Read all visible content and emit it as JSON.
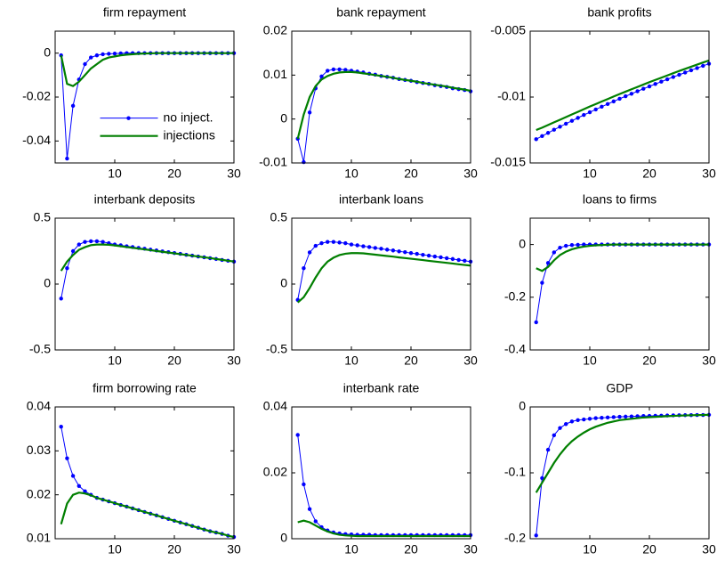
{
  "chart_data": [
    {
      "type": "line",
      "title": "firm repayment",
      "legend": "center",
      "x": [
        1,
        2,
        3,
        4,
        5,
        6,
        7,
        8,
        9,
        10,
        11,
        12,
        13,
        14,
        15,
        16,
        17,
        18,
        19,
        20,
        21,
        22,
        23,
        24,
        25,
        26,
        27,
        28,
        29,
        30
      ],
      "series": [
        {
          "name": "no inject.",
          "color": "#0000ff",
          "marker": true,
          "values": [
            -0.001,
            -0.048,
            -0.024,
            -0.012,
            -0.005,
            -0.002,
            -0.001,
            -0.0005,
            -0.0003,
            -0.0002,
            -0.0001,
            0,
            0,
            0,
            0,
            0,
            0,
            0,
            0,
            0,
            0,
            0,
            0,
            0,
            0,
            0,
            0,
            0,
            0,
            0
          ]
        },
        {
          "name": "injections",
          "color": "#007f00",
          "marker": false,
          "values": [
            -0.001,
            -0.014,
            -0.015,
            -0.013,
            -0.01,
            -0.007,
            -0.005,
            -0.003,
            -0.002,
            -0.0015,
            -0.001,
            -0.0007,
            -0.0005,
            -0.0003,
            -0.0002,
            -0.0001,
            0,
            0,
            0,
            0,
            0,
            0,
            0,
            0,
            0,
            0,
            0,
            0,
            0,
            0
          ]
        }
      ],
      "xlim": [
        0,
        30
      ],
      "xticks": [
        10,
        20,
        30
      ],
      "ylim": [
        -0.05,
        0.01
      ],
      "yticks": [
        -0.04,
        -0.02,
        0
      ]
    },
    {
      "type": "line",
      "title": "bank repayment",
      "x": [
        1,
        2,
        3,
        4,
        5,
        6,
        7,
        8,
        9,
        10,
        11,
        12,
        13,
        14,
        15,
        16,
        17,
        18,
        19,
        20,
        21,
        22,
        23,
        24,
        25,
        26,
        27,
        28,
        29,
        30
      ],
      "series": [
        {
          "color": "#0000ff",
          "marker": true,
          "values": [
            -0.0045,
            -0.0098,
            0.0015,
            0.007,
            0.0097,
            0.011,
            0.0113,
            0.0113,
            0.0112,
            0.011,
            0.0108,
            0.0106,
            0.0103,
            0.0101,
            0.0098,
            0.0096,
            0.0094,
            0.0091,
            0.0089,
            0.0087,
            0.0084,
            0.0082,
            0.008,
            0.0077,
            0.0075,
            0.0073,
            0.007,
            0.0068,
            0.0066,
            0.0063
          ]
        },
        {
          "color": "#007f00",
          "marker": false,
          "values": [
            -0.0045,
            0.001,
            0.005,
            0.0075,
            0.009,
            0.0098,
            0.0103,
            0.0106,
            0.0107,
            0.0107,
            0.0106,
            0.0104,
            0.0102,
            0.01,
            0.0098,
            0.0096,
            0.0094,
            0.0091,
            0.0089,
            0.0087,
            0.0085,
            0.0082,
            0.008,
            0.0078,
            0.0076,
            0.0074,
            0.0071,
            0.0069,
            0.0067,
            0.0064
          ]
        }
      ],
      "xlim": [
        0,
        30
      ],
      "xticks": [
        10,
        20,
        30
      ],
      "ylim": [
        -0.01,
        0.02
      ],
      "yticks": [
        -0.01,
        0,
        0.01,
        0.02
      ]
    },
    {
      "type": "line",
      "title": "bank profits",
      "x": [
        1,
        2,
        3,
        4,
        5,
        6,
        7,
        8,
        9,
        10,
        11,
        12,
        13,
        14,
        15,
        16,
        17,
        18,
        19,
        20,
        21,
        22,
        23,
        24,
        25,
        26,
        27,
        28,
        29,
        30
      ],
      "series": [
        {
          "color": "#0000ff",
          "marker": true,
          "values": [
            -0.0132,
            -0.01296,
            -0.01272,
            -0.01248,
            -0.01225,
            -0.01202,
            -0.0118,
            -0.01158,
            -0.01136,
            -0.01115,
            -0.01094,
            -0.01073,
            -0.01053,
            -0.01033,
            -0.01013,
            -0.00994,
            -0.00975,
            -0.00956,
            -0.00937,
            -0.00919,
            -0.00901,
            -0.00883,
            -0.00865,
            -0.00848,
            -0.00831,
            -0.00814,
            -0.00797,
            -0.0078,
            -0.00763,
            -0.00747
          ]
        },
        {
          "color": "#007f00",
          "marker": false,
          "values": [
            -0.0125,
            -0.01232,
            -0.01212,
            -0.01192,
            -0.01172,
            -0.01152,
            -0.01132,
            -0.01112,
            -0.01092,
            -0.01072,
            -0.01053,
            -0.01034,
            -0.01015,
            -0.00996,
            -0.00977,
            -0.00959,
            -0.00941,
            -0.00923,
            -0.00905,
            -0.00887,
            -0.0087,
            -0.00853,
            -0.00836,
            -0.00819,
            -0.00802,
            -0.00786,
            -0.0077,
            -0.00754,
            -0.00738,
            -0.00722
          ]
        }
      ],
      "xlim": [
        0,
        30
      ],
      "xticks": [
        10,
        20,
        30
      ],
      "ylim": [
        -0.015,
        -0.005
      ],
      "yticks": [
        -0.015,
        -0.01,
        -0.005
      ]
    },
    {
      "type": "line",
      "title": "interbank deposits",
      "x": [
        1,
        2,
        3,
        4,
        5,
        6,
        7,
        8,
        9,
        10,
        11,
        12,
        13,
        14,
        15,
        16,
        17,
        18,
        19,
        20,
        21,
        22,
        23,
        24,
        25,
        26,
        27,
        28,
        29,
        30
      ],
      "series": [
        {
          "color": "#0000ff",
          "marker": true,
          "values": [
            -0.11,
            0.12,
            0.25,
            0.3,
            0.32,
            0.325,
            0.325,
            0.32,
            0.31,
            0.3,
            0.294,
            0.287,
            0.281,
            0.274,
            0.268,
            0.261,
            0.255,
            0.248,
            0.242,
            0.235,
            0.229,
            0.222,
            0.216,
            0.209,
            0.203,
            0.196,
            0.19,
            0.183,
            0.177,
            0.17
          ]
        },
        {
          "color": "#007f00",
          "marker": false,
          "values": [
            0.1,
            0.17,
            0.22,
            0.26,
            0.28,
            0.295,
            0.3,
            0.3,
            0.298,
            0.293,
            0.287,
            0.281,
            0.275,
            0.269,
            0.263,
            0.257,
            0.251,
            0.245,
            0.239,
            0.233,
            0.227,
            0.221,
            0.215,
            0.209,
            0.203,
            0.197,
            0.19,
            0.184,
            0.177,
            0.171
          ]
        }
      ],
      "xlim": [
        0,
        30
      ],
      "xticks": [
        10,
        20,
        30
      ],
      "ylim": [
        -0.5,
        0.5
      ],
      "yticks": [
        -0.5,
        0,
        0.5
      ]
    },
    {
      "type": "line",
      "title": "interbank loans",
      "x": [
        1,
        2,
        3,
        4,
        5,
        6,
        7,
        8,
        9,
        10,
        11,
        12,
        13,
        14,
        15,
        16,
        17,
        18,
        19,
        20,
        21,
        22,
        23,
        24,
        25,
        26,
        27,
        28,
        29,
        30
      ],
      "series": [
        {
          "color": "#0000ff",
          "marker": true,
          "values": [
            -0.12,
            0.12,
            0.24,
            0.29,
            0.31,
            0.32,
            0.32,
            0.315,
            0.31,
            0.3,
            0.294,
            0.287,
            0.281,
            0.274,
            0.268,
            0.261,
            0.255,
            0.248,
            0.242,
            0.235,
            0.229,
            0.222,
            0.216,
            0.209,
            0.203,
            0.196,
            0.19,
            0.183,
            0.177,
            0.17
          ]
        },
        {
          "color": "#007f00",
          "marker": false,
          "values": [
            -0.14,
            -0.1,
            -0.03,
            0.05,
            0.12,
            0.17,
            0.2,
            0.22,
            0.23,
            0.235,
            0.235,
            0.233,
            0.228,
            0.223,
            0.218,
            0.213,
            0.208,
            0.202,
            0.197,
            0.192,
            0.187,
            0.182,
            0.176,
            0.171,
            0.166,
            0.161,
            0.156,
            0.15,
            0.145,
            0.14
          ]
        }
      ],
      "xlim": [
        0,
        30
      ],
      "xticks": [
        10,
        20,
        30
      ],
      "ylim": [
        -0.5,
        0.5
      ],
      "yticks": [
        -0.5,
        0,
        0.5
      ]
    },
    {
      "type": "line",
      "title": "loans to firms",
      "x": [
        1,
        2,
        3,
        4,
        5,
        6,
        7,
        8,
        9,
        10,
        11,
        12,
        13,
        14,
        15,
        16,
        17,
        18,
        19,
        20,
        21,
        22,
        23,
        24,
        25,
        26,
        27,
        28,
        29,
        30
      ],
      "series": [
        {
          "color": "#0000ff",
          "marker": true,
          "values": [
            -0.295,
            -0.145,
            -0.07,
            -0.03,
            -0.012,
            -0.005,
            -0.002,
            -0.001,
            0,
            0,
            0,
            0,
            0,
            0,
            0,
            0,
            0,
            0,
            0,
            0,
            0,
            0,
            0,
            0,
            0,
            0,
            0,
            0,
            0,
            0
          ]
        },
        {
          "color": "#007f00",
          "marker": false,
          "values": [
            -0.09,
            -0.1,
            -0.085,
            -0.06,
            -0.04,
            -0.027,
            -0.018,
            -0.012,
            -0.008,
            -0.005,
            -0.003,
            -0.002,
            -0.001,
            0,
            0,
            0,
            0,
            0,
            0,
            0,
            0,
            0,
            0,
            0,
            0,
            0,
            0,
            0,
            0,
            0
          ]
        }
      ],
      "xlim": [
        0,
        30
      ],
      "xticks": [
        10,
        20,
        30
      ],
      "ylim": [
        -0.4,
        0.1
      ],
      "yticks": [
        -0.4,
        -0.2,
        0
      ]
    },
    {
      "type": "line",
      "title": "firm borrowing rate",
      "x": [
        1,
        2,
        3,
        4,
        5,
        6,
        7,
        8,
        9,
        10,
        11,
        12,
        13,
        14,
        15,
        16,
        17,
        18,
        19,
        20,
        21,
        22,
        23,
        24,
        25,
        26,
        27,
        28,
        29,
        30
      ],
      "series": [
        {
          "color": "#0000ff",
          "marker": true,
          "values": [
            0.0355,
            0.0283,
            0.0243,
            0.022,
            0.0208,
            0.02,
            0.0193,
            0.0189,
            0.0185,
            0.0181,
            0.0177,
            0.0173,
            0.0169,
            0.0165,
            0.0161,
            0.0157,
            0.0153,
            0.0149,
            0.0145,
            0.0141,
            0.0137,
            0.0133,
            0.0129,
            0.0125,
            0.0121,
            0.0117,
            0.0114,
            0.0111,
            0.0107,
            0.0104
          ]
        },
        {
          "color": "#007f00",
          "marker": false,
          "values": [
            0.0133,
            0.018,
            0.02,
            0.0205,
            0.0203,
            0.0199,
            0.0193,
            0.0189,
            0.0185,
            0.0181,
            0.0177,
            0.0173,
            0.0169,
            0.0165,
            0.0161,
            0.0157,
            0.0153,
            0.0149,
            0.0145,
            0.0141,
            0.0137,
            0.0133,
            0.0129,
            0.0125,
            0.0121,
            0.0117,
            0.0114,
            0.0111,
            0.0107,
            0.0104
          ]
        }
      ],
      "xlim": [
        0,
        30
      ],
      "xticks": [
        10,
        20,
        30
      ],
      "ylim": [
        0.01,
        0.04
      ],
      "yticks": [
        0.01,
        0.02,
        0.03,
        0.04
      ]
    },
    {
      "type": "line",
      "title": "interbank rate",
      "x": [
        1,
        2,
        3,
        4,
        5,
        6,
        7,
        8,
        9,
        10,
        11,
        12,
        13,
        14,
        15,
        16,
        17,
        18,
        19,
        20,
        21,
        22,
        23,
        24,
        25,
        26,
        27,
        28,
        29,
        30
      ],
      "series": [
        {
          "color": "#0000ff",
          "marker": true,
          "values": [
            0.0315,
            0.0165,
            0.009,
            0.0053,
            0.0035,
            0.0025,
            0.0019,
            0.0016,
            0.0014,
            0.0013,
            0.0012,
            0.0012,
            0.0012,
            0.0011,
            0.0011,
            0.0011,
            0.0011,
            0.0011,
            0.0011,
            0.0011,
            0.0011,
            0.0011,
            0.0011,
            0.0011,
            0.0011,
            0.0011,
            0.0011,
            0.0011,
            0.0011,
            0.0011
          ]
        },
        {
          "color": "#007f00",
          "marker": false,
          "values": [
            0.005,
            0.0055,
            0.005,
            0.004,
            0.003,
            0.0022,
            0.0016,
            0.0012,
            0.001,
            0.0009,
            0.0008,
            0.0008,
            0.0008,
            0.0008,
            0.0008,
            0.0008,
            0.0008,
            0.0008,
            0.0008,
            0.0008,
            0.0008,
            0.0008,
            0.0008,
            0.0008,
            0.0008,
            0.0008,
            0.0008,
            0.0008,
            0.0008,
            0.0008
          ]
        }
      ],
      "xlim": [
        0,
        30
      ],
      "xticks": [
        10,
        20,
        30
      ],
      "ylim": [
        0,
        0.04
      ],
      "yticks": [
        0,
        0.02,
        0.04
      ]
    },
    {
      "type": "line",
      "title": "GDP",
      "x": [
        1,
        2,
        3,
        4,
        5,
        6,
        7,
        8,
        9,
        10,
        11,
        12,
        13,
        14,
        15,
        16,
        17,
        18,
        19,
        20,
        21,
        22,
        23,
        24,
        25,
        26,
        27,
        28,
        29,
        30
      ],
      "series": [
        {
          "color": "#0000ff",
          "marker": true,
          "values": [
            -0.195,
            -0.108,
            -0.065,
            -0.043,
            -0.032,
            -0.026,
            -0.022,
            -0.02,
            -0.019,
            -0.018,
            -0.017,
            -0.0165,
            -0.016,
            -0.0155,
            -0.015,
            -0.0147,
            -0.0144,
            -0.0141,
            -0.0138,
            -0.0136,
            -0.0134,
            -0.0132,
            -0.013,
            -0.0128,
            -0.0126,
            -0.0125,
            -0.0124,
            -0.0123,
            -0.0122,
            -0.012
          ]
        },
        {
          "color": "#007f00",
          "marker": false,
          "values": [
            -0.13,
            -0.115,
            -0.1,
            -0.085,
            -0.072,
            -0.061,
            -0.052,
            -0.045,
            -0.039,
            -0.034,
            -0.03,
            -0.027,
            -0.024,
            -0.022,
            -0.02,
            -0.019,
            -0.018,
            -0.017,
            -0.016,
            -0.0155,
            -0.015,
            -0.0145,
            -0.014,
            -0.0136,
            -0.0132,
            -0.0129,
            -0.0126,
            -0.0124,
            -0.0122,
            -0.012
          ]
        }
      ],
      "xlim": [
        0,
        30
      ],
      "xticks": [
        10,
        20,
        30
      ],
      "ylim": [
        -0.2,
        0
      ],
      "yticks": [
        -0.2,
        -0.1,
        0
      ]
    }
  ]
}
